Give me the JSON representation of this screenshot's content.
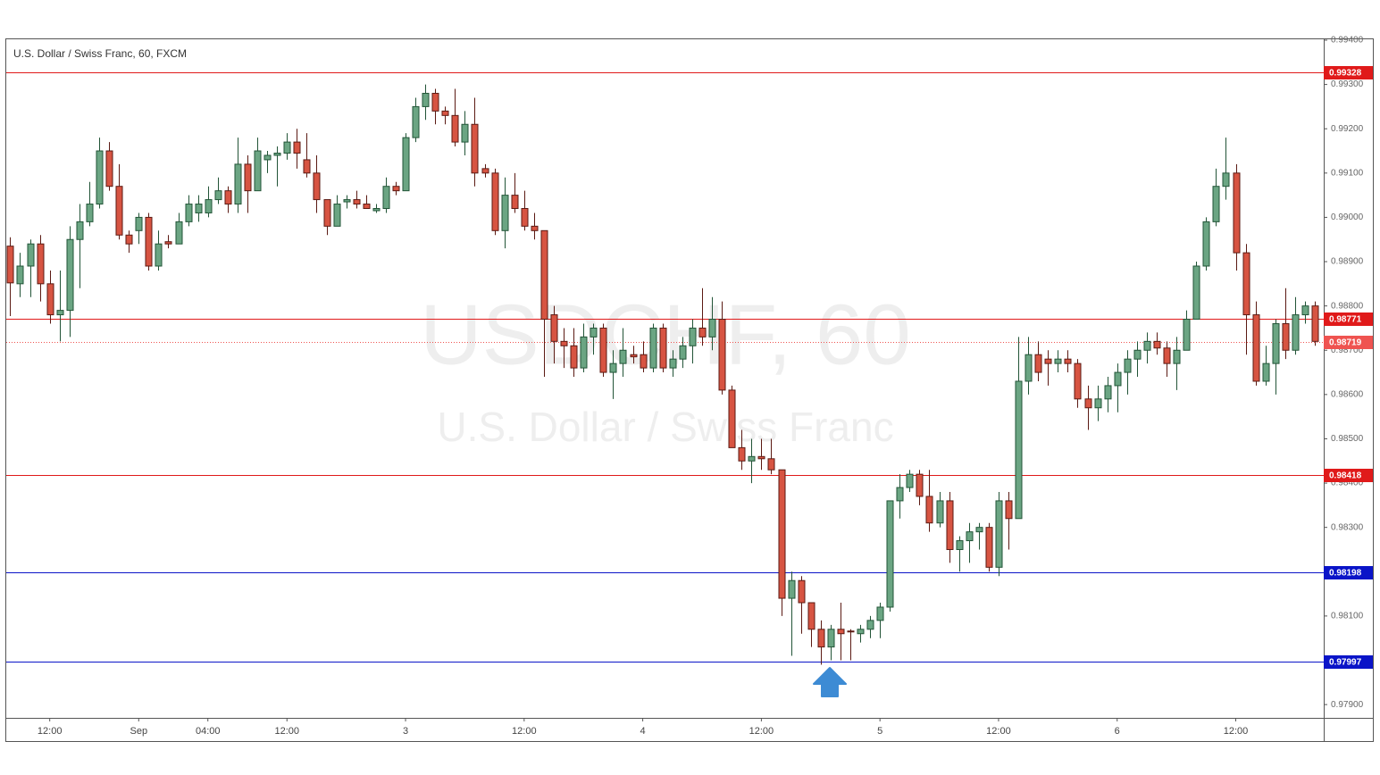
{
  "chart_data": {
    "type": "candlestick",
    "title": "U.S. Dollar / Swiss Franc, 60, FXCM",
    "watermark_symbol": "USDCHF, 60",
    "watermark_name": "U.S. Dollar / Swiss Franc",
    "up_color": "#6ba583",
    "down_color": "#d75442",
    "grid": true,
    "xlim": [
      -0.4,
      132.9
    ],
    "xticks": [
      {
        "value": 4,
        "label": "12:00"
      },
      {
        "value": 13,
        "label": "Sep"
      },
      {
        "value": 20,
        "label": "04:00"
      },
      {
        "value": 28,
        "label": "12:00"
      },
      {
        "value": 40,
        "label": "3"
      },
      {
        "value": 52,
        "label": "12:00"
      },
      {
        "value": 64,
        "label": "4"
      },
      {
        "value": 76,
        "label": "12:00"
      },
      {
        "value": 88,
        "label": "5"
      },
      {
        "value": 100,
        "label": "12:00"
      },
      {
        "value": 112,
        "label": "6"
      },
      {
        "value": 124,
        "label": "12:00"
      }
    ],
    "ylim": [
      0.9787,
      0.99402
    ],
    "yticks": [
      {
        "value": 0.979,
        "label": "0.97900"
      },
      {
        "value": 0.98,
        "label": "0.98000"
      },
      {
        "value": 0.981,
        "label": "0.98100"
      },
      {
        "value": 0.982,
        "label": "0.98200"
      },
      {
        "value": 0.983,
        "label": "0.98300"
      },
      {
        "value": 0.984,
        "label": "0.98400"
      },
      {
        "value": 0.985,
        "label": "0.98500"
      },
      {
        "value": 0.986,
        "label": "0.98600"
      },
      {
        "value": 0.987,
        "label": "0.98700"
      },
      {
        "value": 0.988,
        "label": "0.98800"
      },
      {
        "value": 0.989,
        "label": "0.98900"
      },
      {
        "value": 0.99,
        "label": "0.99000"
      },
      {
        "value": 0.991,
        "label": "0.99100"
      },
      {
        "value": 0.992,
        "label": "0.99200"
      },
      {
        "value": 0.993,
        "label": "0.99300"
      },
      {
        "value": 0.994,
        "label": "0.99400"
      }
    ],
    "levels": [
      {
        "value": 0.99328,
        "label": "0.99328",
        "color": "#e01a1a",
        "dotted": false
      },
      {
        "value": 0.98771,
        "label": "0.98771",
        "color": "#e01a1a",
        "dotted": false
      },
      {
        "value": 0.98719,
        "label": "0.98719",
        "color": "#ef5350",
        "dotted": true
      },
      {
        "value": 0.98418,
        "label": "0.98418",
        "color": "#e01a1a",
        "dotted": false
      },
      {
        "value": 0.98198,
        "label": "0.98198",
        "color": "#0a14c8",
        "dotted": false
      },
      {
        "value": 0.97997,
        "label": "0.97997",
        "color": "#0a14c8",
        "dotted": false
      }
    ],
    "open": [
      0.98935,
      0.9885,
      0.9889,
      0.9894,
      0.9885,
      0.9878,
      0.9879,
      0.9895,
      0.9899,
      0.9903,
      0.9915,
      0.9907,
      0.9896,
      0.9897,
      0.99,
      0.9889,
      0.98945,
      0.9894,
      0.9899,
      0.9901,
      0.9901,
      0.9904,
      0.9906,
      0.9903,
      0.9912,
      0.9906,
      0.9913,
      0.9914,
      0.99145,
      0.9917,
      0.9913,
      0.991,
      0.9904,
      0.9898,
      0.99035,
      0.9904,
      0.9903,
      0.99015,
      0.9902,
      0.9907,
      0.9906,
      0.9918,
      0.9925,
      0.9928,
      0.9924,
      0.9923,
      0.9917,
      0.9921,
      0.9911,
      0.991,
      0.9897,
      0.9905,
      0.9902,
      0.9898,
      0.9897,
      0.9878,
      0.9872,
      0.9871,
      0.9866,
      0.9873,
      0.9875,
      0.9865,
      0.9867,
      0.9869,
      0.9869,
      0.9866,
      0.9875,
      0.9866,
      0.9868,
      0.9871,
      0.9875,
      0.9873,
      0.9877,
      0.9861,
      0.9848,
      0.9845,
      0.9846,
      0.98455,
      0.9843,
      0.9814,
      0.9818,
      0.9813,
      0.9807,
      0.9803,
      0.9807,
      0.98066,
      0.9806,
      0.9807,
      0.9809,
      0.9812,
      0.9836,
      0.9839,
      0.9842,
      0.9837,
      0.9831,
      0.9836,
      0.9825,
      0.9827,
      0.9829,
      0.983,
      0.9821,
      0.9836,
      0.9832,
      0.9863,
      0.9869,
      0.9868,
      0.9867,
      0.9868,
      0.9867,
      0.9859,
      0.9857,
      0.9859,
      0.9862,
      0.9865,
      0.9868,
      0.987,
      0.9872,
      0.98705,
      0.9867,
      0.987,
      0.9877,
      0.9889,
      0.9899,
      0.9907,
      0.991,
      0.9892,
      0.9878,
      0.9863,
      0.9867,
      0.9876,
      0.987,
      0.9878,
      0.988
    ],
    "close": [
      0.98852,
      0.9889,
      0.9894,
      0.9885,
      0.9878,
      0.9879,
      0.9895,
      0.9899,
      0.9903,
      0.9915,
      0.9907,
      0.9896,
      0.9894,
      0.99,
      0.9889,
      0.9894,
      0.9894,
      0.9899,
      0.9903,
      0.9903,
      0.9904,
      0.9906,
      0.9903,
      0.9912,
      0.9906,
      0.9915,
      0.9914,
      0.99145,
      0.9917,
      0.99145,
      0.991,
      0.9904,
      0.9898,
      0.9903,
      0.9904,
      0.9903,
      0.9902,
      0.9902,
      0.9907,
      0.9906,
      0.9918,
      0.9925,
      0.9928,
      0.9924,
      0.9923,
      0.9917,
      0.9921,
      0.991,
      0.991,
      0.9897,
      0.9905,
      0.9902,
      0.9898,
      0.9897,
      0.9877,
      0.9872,
      0.9871,
      0.9866,
      0.9873,
      0.9875,
      0.9865,
      0.9867,
      0.987,
      0.98685,
      0.9866,
      0.9875,
      0.9866,
      0.9868,
      0.9871,
      0.9875,
      0.9873,
      0.9877,
      0.9861,
      0.9848,
      0.9845,
      0.9846,
      0.98455,
      0.9843,
      0.9814,
      0.9818,
      0.9813,
      0.9807,
      0.9803,
      0.9807,
      0.9806,
      0.98064,
      0.9807,
      0.9809,
      0.9812,
      0.9836,
      0.9839,
      0.9842,
      0.9837,
      0.9831,
      0.9836,
      0.9825,
      0.9827,
      0.9829,
      0.983,
      0.9821,
      0.9836,
      0.9832,
      0.9863,
      0.9869,
      0.9865,
      0.9867,
      0.9868,
      0.9867,
      0.9859,
      0.9857,
      0.9859,
      0.9862,
      0.9865,
      0.9868,
      0.987,
      0.9872,
      0.98705,
      0.9867,
      0.987,
      0.9877,
      0.9889,
      0.9899,
      0.9907,
      0.991,
      0.9892,
      0.9878,
      0.9863,
      0.9867,
      0.9876,
      0.987,
      0.9878,
      0.988,
      0.9872
    ],
    "high": [
      0.98955,
      0.9892,
      0.9895,
      0.9896,
      0.9888,
      0.9888,
      0.9898,
      0.9903,
      0.9908,
      0.9918,
      0.9917,
      0.9912,
      0.9897,
      0.9901,
      0.9901,
      0.9897,
      0.9896,
      0.9901,
      0.9905,
      0.9905,
      0.9907,
      0.9909,
      0.9907,
      0.9918,
      0.9914,
      0.9918,
      0.9915,
      0.9916,
      0.9919,
      0.992,
      0.9919,
      0.9914,
      0.9904,
      0.9905,
      0.9905,
      0.9906,
      0.9905,
      0.9903,
      0.9909,
      0.9908,
      0.9919,
      0.9927,
      0.993,
      0.9929,
      0.9925,
      0.9929,
      0.9924,
      0.9927,
      0.9912,
      0.9911,
      0.9909,
      0.991,
      0.9906,
      0.9901,
      0.9897,
      0.988,
      0.9875,
      0.9875,
      0.9876,
      0.9876,
      0.9876,
      0.987,
      0.9875,
      0.9871,
      0.9872,
      0.9876,
      0.9876,
      0.987,
      0.9873,
      0.9877,
      0.9884,
      0.9882,
      0.9881,
      0.9862,
      0.9852,
      0.985,
      0.985,
      0.985,
      0.9843,
      0.982,
      0.9819,
      0.9813,
      0.9809,
      0.9808,
      0.9813,
      0.9807,
      0.9808,
      0.981,
      0.9813,
      0.9836,
      0.9842,
      0.9843,
      0.9843,
      0.9843,
      0.9838,
      0.9838,
      0.9828,
      0.9831,
      0.9831,
      0.9831,
      0.9838,
      0.9838,
      0.9873,
      0.9873,
      0.9872,
      0.987,
      0.987,
      0.987,
      0.9868,
      0.9862,
      0.9862,
      0.9864,
      0.9867,
      0.987,
      0.9872,
      0.9874,
      0.9874,
      0.9872,
      0.9873,
      0.9879,
      0.989,
      0.99,
      0.9911,
      0.9918,
      0.9912,
      0.9894,
      0.9881,
      0.9871,
      0.9877,
      0.9884,
      0.9882,
      0.9881,
      0.9881
    ],
    "low": [
      0.98777,
      0.9882,
      0.9882,
      0.9881,
      0.9876,
      0.9872,
      0.9873,
      0.9884,
      0.9898,
      0.9902,
      0.9906,
      0.9895,
      0.9892,
      0.9894,
      0.9888,
      0.9888,
      0.9893,
      0.9894,
      0.9898,
      0.9899,
      0.99,
      0.9903,
      0.9901,
      0.9901,
      0.9901,
      0.9906,
      0.991,
      0.9907,
      0.9913,
      0.9911,
      0.9909,
      0.9901,
      0.9896,
      0.9898,
      0.9902,
      0.9902,
      0.9902,
      0.9901,
      0.9901,
      0.9905,
      0.9906,
      0.9917,
      0.9922,
      0.9921,
      0.9921,
      0.9916,
      0.9914,
      0.9907,
      0.9909,
      0.9896,
      0.9893,
      0.9901,
      0.9897,
      0.9895,
      0.9864,
      0.9867,
      0.9866,
      0.9864,
      0.9865,
      0.9869,
      0.9864,
      0.9859,
      0.9864,
      0.9867,
      0.9865,
      0.9865,
      0.9865,
      0.9864,
      0.9866,
      0.9867,
      0.9871,
      0.987,
      0.986,
      0.9848,
      0.9843,
      0.984,
      0.9843,
      0.9842,
      0.981,
      0.9801,
      0.9806,
      0.9803,
      0.9799,
      0.98,
      0.98,
      0.98,
      0.9804,
      0.9805,
      0.9805,
      0.9811,
      0.9832,
      0.9838,
      0.9835,
      0.9829,
      0.983,
      0.9822,
      0.982,
      0.9822,
      0.9825,
      0.982,
      0.9819,
      0.9825,
      0.9832,
      0.986,
      0.9863,
      0.9862,
      0.9865,
      0.9865,
      0.9857,
      0.9852,
      0.9854,
      0.9856,
      0.9856,
      0.986,
      0.9864,
      0.9867,
      0.9869,
      0.9864,
      0.9861,
      0.987,
      0.9877,
      0.9888,
      0.9898,
      0.9904,
      0.9888,
      0.9869,
      0.9862,
      0.9862,
      0.986,
      0.9868,
      0.9869,
      0.9876,
      0.9871
    ]
  }
}
